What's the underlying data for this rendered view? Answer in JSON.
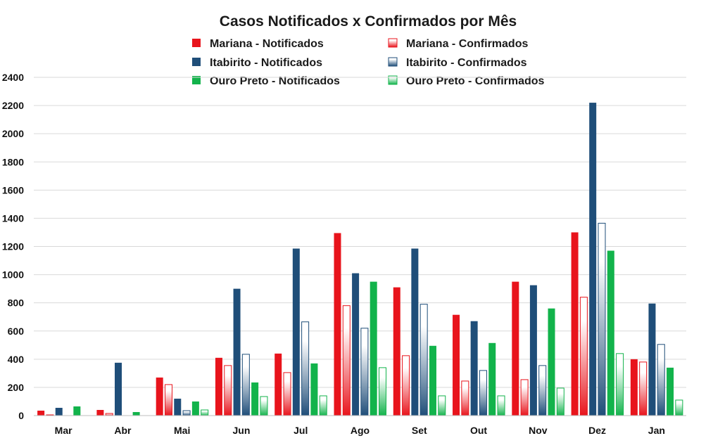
{
  "chart_data": {
    "type": "bar",
    "title": "Casos Notificados x Confirmados por Mês",
    "xlabel": "",
    "ylabel": "",
    "ylim": [
      0,
      2400
    ],
    "yticks": [
      0,
      200,
      400,
      600,
      800,
      1000,
      1200,
      1400,
      1600,
      1800,
      2000,
      2200,
      2400
    ],
    "grid": true,
    "legend_position": "top",
    "categories": [
      "Mar",
      "Abr",
      "Mai",
      "Jun",
      "Jul",
      "Ago",
      "Set",
      "Out",
      "Nov",
      "Dez",
      "Jan"
    ],
    "series": [
      {
        "name": "Mariana - Notificados",
        "color": "#e8141c",
        "style": "solid",
        "values": [
          35,
          40,
          270,
          410,
          440,
          1295,
          910,
          715,
          950,
          1300,
          400
        ]
      },
      {
        "name": "Mariana - Confirmados",
        "color": "#e8141c",
        "style": "gradient",
        "values": [
          5,
          15,
          220,
          355,
          305,
          780,
          425,
          245,
          255,
          840,
          380
        ]
      },
      {
        "name": "Itabirito - Notificados",
        "color": "#1f4e79",
        "style": "solid",
        "values": [
          55,
          375,
          120,
          900,
          1185,
          1010,
          1185,
          670,
          925,
          2220,
          795
        ]
      },
      {
        "name": "Itabirito - Confirmados",
        "color": "#1f4e79",
        "style": "gradient",
        "values": [
          0,
          0,
          35,
          435,
          665,
          620,
          790,
          320,
          355,
          1365,
          505
        ]
      },
      {
        "name": "Ouro Preto - Notificados",
        "color": "#12b34b",
        "style": "solid",
        "values": [
          65,
          25,
          100,
          235,
          370,
          950,
          495,
          515,
          760,
          1170,
          340
        ]
      },
      {
        "name": "Ouro Preto - Confirmados",
        "color": "#12b34b",
        "style": "gradient",
        "values": [
          0,
          0,
          40,
          135,
          140,
          340,
          140,
          140,
          195,
          440,
          110
        ]
      }
    ]
  }
}
